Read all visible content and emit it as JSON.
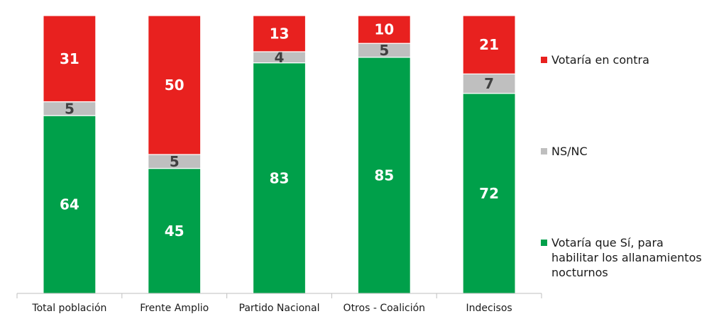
{
  "chart_data": {
    "type": "bar",
    "stacked": true,
    "categories": [
      "Total población",
      "Frente Amplio",
      "Partido Nacional",
      "Otros - Coalición",
      "Indecisos"
    ],
    "series": [
      {
        "name": "Votaría que Sí, para habilitar los allanamientos nocturnos",
        "values": [
          64,
          45,
          83,
          85,
          72
        ],
        "color": "#00a04a",
        "label_color": "#ffffff"
      },
      {
        "name": "NS/NC",
        "values": [
          5,
          5,
          4,
          5,
          7
        ],
        "color": "#bfbfbf",
        "label_color": "#404040"
      },
      {
        "name": "Votaría en contra",
        "values": [
          31,
          50,
          13,
          10,
          21
        ],
        "color": "#e8211f",
        "label_color": "#ffffff"
      }
    ],
    "ylim": [
      0,
      100
    ],
    "grid": false,
    "legend_position": "right",
    "xlabel": "",
    "ylabel": ""
  },
  "legend": {
    "against": "Votaría en contra",
    "nsnc": "NS/NC",
    "yes": "Votaría que Sí, para habilitar los allanamientos nocturnos"
  },
  "colors": {
    "against": "#e8211f",
    "nsnc": "#bfbfbf",
    "yes": "#00a04a",
    "axis": "#bfbfbf"
  }
}
